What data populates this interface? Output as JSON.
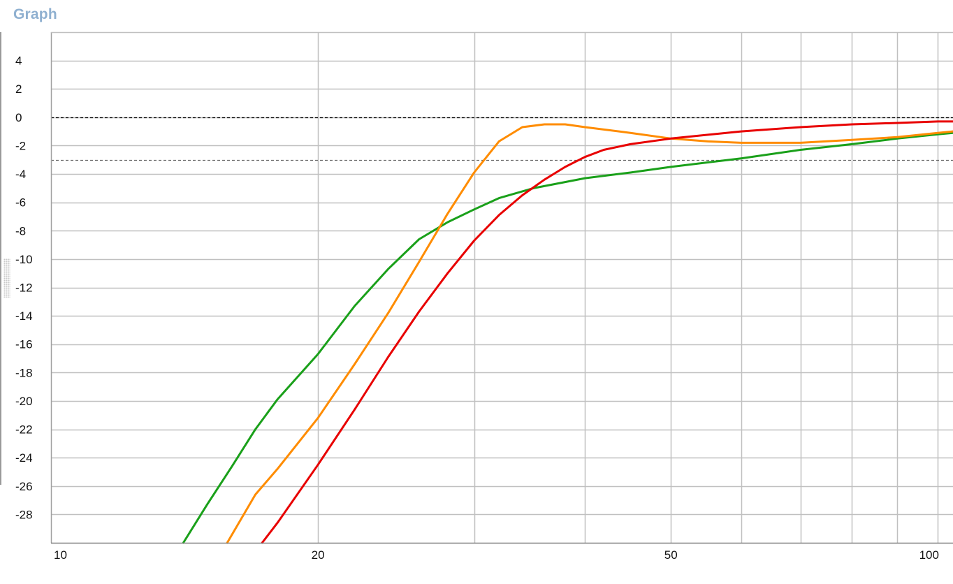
{
  "app": {
    "title": "Graph"
  },
  "chart_data": {
    "type": "line",
    "title": "",
    "xlabel": "",
    "ylabel": "",
    "xscale": "log",
    "xlim": [
      10,
      104
    ],
    "ylim": [
      -30,
      6
    ],
    "x_tick_labels": [
      {
        "value": 10,
        "label": "10"
      },
      {
        "value": 20,
        "label": "20"
      },
      {
        "value": 50,
        "label": "50"
      },
      {
        "value": 100,
        "label": "100"
      }
    ],
    "x_gridlines": [
      20,
      30,
      40,
      50,
      60,
      70,
      80,
      90,
      100
    ],
    "y_ticks": [
      4,
      2,
      0,
      -2,
      -4,
      -6,
      -8,
      -10,
      -12,
      -14,
      -16,
      -18,
      -20,
      -22,
      -24,
      -26,
      -28
    ],
    "grid": true,
    "reference_lines": [
      {
        "y": 0,
        "style": "dashed",
        "color": "#000000"
      },
      {
        "y": -3,
        "style": "dashed",
        "color": "#666666"
      }
    ],
    "series": [
      {
        "color": "#1aa01a",
        "x": [
          14.1,
          15,
          16,
          17,
          18,
          20,
          22,
          24,
          26,
          28,
          30,
          32,
          35,
          40,
          45,
          50,
          60,
          70,
          80,
          90,
          100,
          104
        ],
        "y": [
          -30,
          -27.3,
          -24.6,
          -22,
          -19.9,
          -16.7,
          -13.3,
          -10.7,
          -8.6,
          -7.4,
          -6.5,
          -5.7,
          -5.0,
          -4.3,
          -3.9,
          -3.5,
          -2.9,
          -2.3,
          -1.9,
          -1.5,
          -1.2,
          -1.1
        ]
      },
      {
        "color": "#ff8c00",
        "x": [
          15.8,
          17,
          18,
          20,
          22,
          24,
          26,
          28,
          30,
          32,
          34,
          36,
          38,
          40,
          45,
          50,
          55,
          60,
          70,
          80,
          90,
          100,
          104
        ],
        "y": [
          -30,
          -26.6,
          -24.8,
          -21.2,
          -17.4,
          -13.8,
          -10.2,
          -6.8,
          -3.9,
          -1.7,
          -0.7,
          -0.5,
          -0.5,
          -0.7,
          -1.1,
          -1.5,
          -1.7,
          -1.8,
          -1.8,
          -1.6,
          -1.4,
          -1.1,
          -1.0
        ]
      },
      {
        "color": "#e80000",
        "x": [
          17.3,
          18,
          20,
          22,
          24,
          26,
          28,
          30,
          32,
          34,
          36,
          38,
          40,
          42,
          45,
          50,
          60,
          70,
          80,
          90,
          100,
          104
        ],
        "y": [
          -30,
          -28.6,
          -24.5,
          -20.6,
          -16.9,
          -13.7,
          -11.0,
          -8.7,
          -6.9,
          -5.5,
          -4.4,
          -3.5,
          -2.8,
          -2.3,
          -1.9,
          -1.5,
          -1.0,
          -0.7,
          -0.5,
          -0.4,
          -0.3,
          -0.3
        ]
      }
    ]
  }
}
